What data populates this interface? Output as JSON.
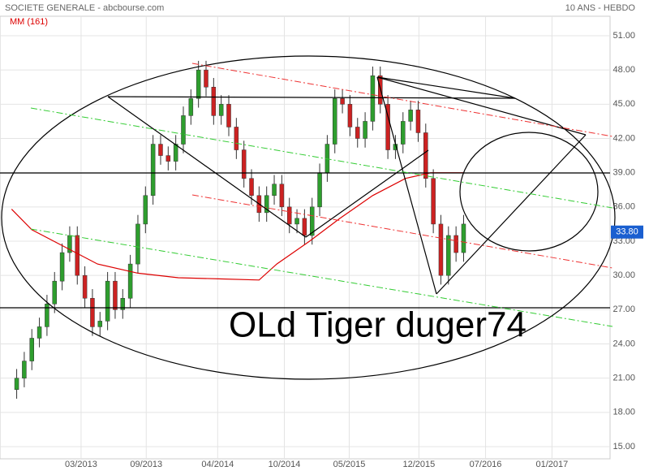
{
  "chart_data": {
    "type": "candlestick",
    "title": "SOCIETE GENERALE - abcbourse.com",
    "subtitle": "10 ANS - HEBDO",
    "annotation": "OLd Tiger duger74",
    "up_color": "#2e9e2e",
    "down_color": "#cc2222",
    "grid": true,
    "xlim": [
      0,
      240
    ],
    "xticks": [
      {
        "value": 30.5,
        "label": "03/2013"
      },
      {
        "value": 56.3,
        "label": "09/2013"
      },
      {
        "value": 84.6,
        "label": "04/2014"
      },
      {
        "value": 111,
        "label": "10/2014"
      },
      {
        "value": 136.7,
        "label": "05/2015"
      },
      {
        "value": 164.3,
        "label": "12/2015"
      },
      {
        "value": 190.7,
        "label": "07/2016"
      },
      {
        "value": 217,
        "label": "01/2017"
      }
    ],
    "ylim": [
      15,
      51
    ],
    "yticks": [
      {
        "value": 15,
        "label": "15.00"
      },
      {
        "value": 18,
        "label": "18.00"
      },
      {
        "value": 21,
        "label": "21.00"
      },
      {
        "value": 24,
        "label": "24.00"
      },
      {
        "value": 27,
        "label": "27.00"
      },
      {
        "value": 30,
        "label": "30.00"
      },
      {
        "value": 33,
        "label": "33.00"
      },
      {
        "value": 36,
        "label": "36.00"
      },
      {
        "value": 39,
        "label": "39.00"
      },
      {
        "value": 42,
        "label": "42.00"
      },
      {
        "value": 45,
        "label": "45.00"
      },
      {
        "value": 48,
        "label": "48.00"
      },
      {
        "value": 51,
        "label": "51.00"
      }
    ],
    "x": [
      5,
      8,
      11,
      14,
      17,
      20,
      23,
      26,
      29,
      32,
      35,
      38,
      41,
      44,
      47,
      50,
      53,
      56,
      59,
      62,
      65,
      68,
      71,
      74,
      77,
      80,
      83,
      86,
      89,
      92,
      95,
      98,
      101,
      104,
      107,
      110,
      113,
      116,
      119,
      122,
      125,
      128,
      131,
      134,
      137,
      140,
      143,
      146,
      149,
      152,
      155,
      158,
      161,
      164,
      167,
      170,
      173,
      176,
      179,
      182
    ],
    "open": [
      20,
      21,
      22.5,
      24.5,
      25.5,
      27.5,
      29.5,
      32,
      33.5,
      30,
      28,
      25.5,
      26,
      29.5,
      27,
      28,
      31,
      34.5,
      37,
      41.5,
      40.5,
      40,
      41.5,
      44,
      45.5,
      48,
      46.5,
      44,
      45,
      43,
      41,
      38.5,
      37,
      35.5,
      37,
      38,
      36,
      34.5,
      35,
      33.5,
      36,
      39,
      41.5,
      45.5,
      45,
      43,
      42,
      43.5,
      47.5,
      45,
      41,
      41.5,
      43.5,
      44.5,
      42.5,
      38.5,
      34.5,
      30,
      33.5,
      32
    ],
    "high": [
      21.8,
      23.3,
      25.3,
      26.3,
      28.3,
      30.3,
      32.8,
      34.3,
      34.3,
      30.8,
      28.8,
      26.8,
      30.3,
      30.3,
      28.8,
      31.8,
      35.3,
      37.8,
      42.3,
      42.3,
      41.3,
      42.3,
      44.8,
      46.3,
      48.8,
      48.8,
      47.3,
      45.8,
      45.8,
      43.8,
      41.8,
      39.3,
      37.8,
      37.8,
      38.8,
      38.8,
      36.8,
      35.8,
      35.8,
      36.8,
      39.8,
      42.3,
      46.3,
      46.3,
      45.8,
      43.8,
      44.3,
      48.3,
      48.3,
      45.8,
      42.3,
      44.3,
      45.3,
      45.3,
      43.3,
      39.3,
      35.3,
      34.3,
      34.3,
      35.3
    ],
    "low": [
      19.2,
      20.2,
      21.7,
      23.7,
      24.7,
      26.7,
      28.7,
      31.2,
      29.2,
      27.2,
      24.7,
      24.7,
      25.2,
      26.2,
      26.2,
      27.2,
      30.2,
      33.7,
      36.2,
      39.7,
      39.2,
      39.2,
      40.7,
      43.2,
      44.7,
      45.7,
      43.2,
      43.2,
      42.2,
      40.2,
      37.7,
      36.2,
      34.7,
      34.7,
      36.2,
      35.2,
      33.7,
      33.7,
      32.7,
      32.7,
      35.2,
      38.2,
      40.7,
      44.2,
      42.2,
      41.2,
      41.2,
      42.7,
      44.2,
      40.2,
      40.2,
      40.7,
      42.7,
      41.7,
      37.7,
      33.7,
      29.2,
      29.2,
      31.2,
      31.2
    ],
    "close": [
      21,
      22.5,
      24.5,
      25.5,
      27.5,
      29.5,
      32,
      33.5,
      30,
      28,
      25.5,
      26,
      29.5,
      27,
      28,
      31,
      34.5,
      37,
      41.5,
      40.5,
      40,
      41.5,
      44,
      45.5,
      48,
      46.5,
      44,
      45,
      43,
      41,
      38.5,
      37,
      35.5,
      37,
      38,
      36,
      34.5,
      35,
      33.5,
      36,
      39,
      41.5,
      45.5,
      45,
      43,
      42,
      43.5,
      47.5,
      45,
      41,
      41.5,
      43.5,
      44.5,
      42.5,
      38.5,
      34.5,
      30,
      33.5,
      32,
      34.5
    ],
    "moving_average": {
      "name": "MM (161)",
      "color": "#dd0000",
      "x": [
        3,
        11,
        24,
        37,
        53,
        69,
        85,
        101,
        108,
        121,
        133,
        146,
        159,
        169,
        182
      ],
      "values": [
        35.8,
        34,
        32.5,
        31,
        30.2,
        29.8,
        29.7,
        29.6,
        31,
        33,
        35,
        37,
        38.5,
        39,
        39
      ]
    },
    "last_value": {
      "value": 33.8,
      "label": "33.80"
    }
  }
}
